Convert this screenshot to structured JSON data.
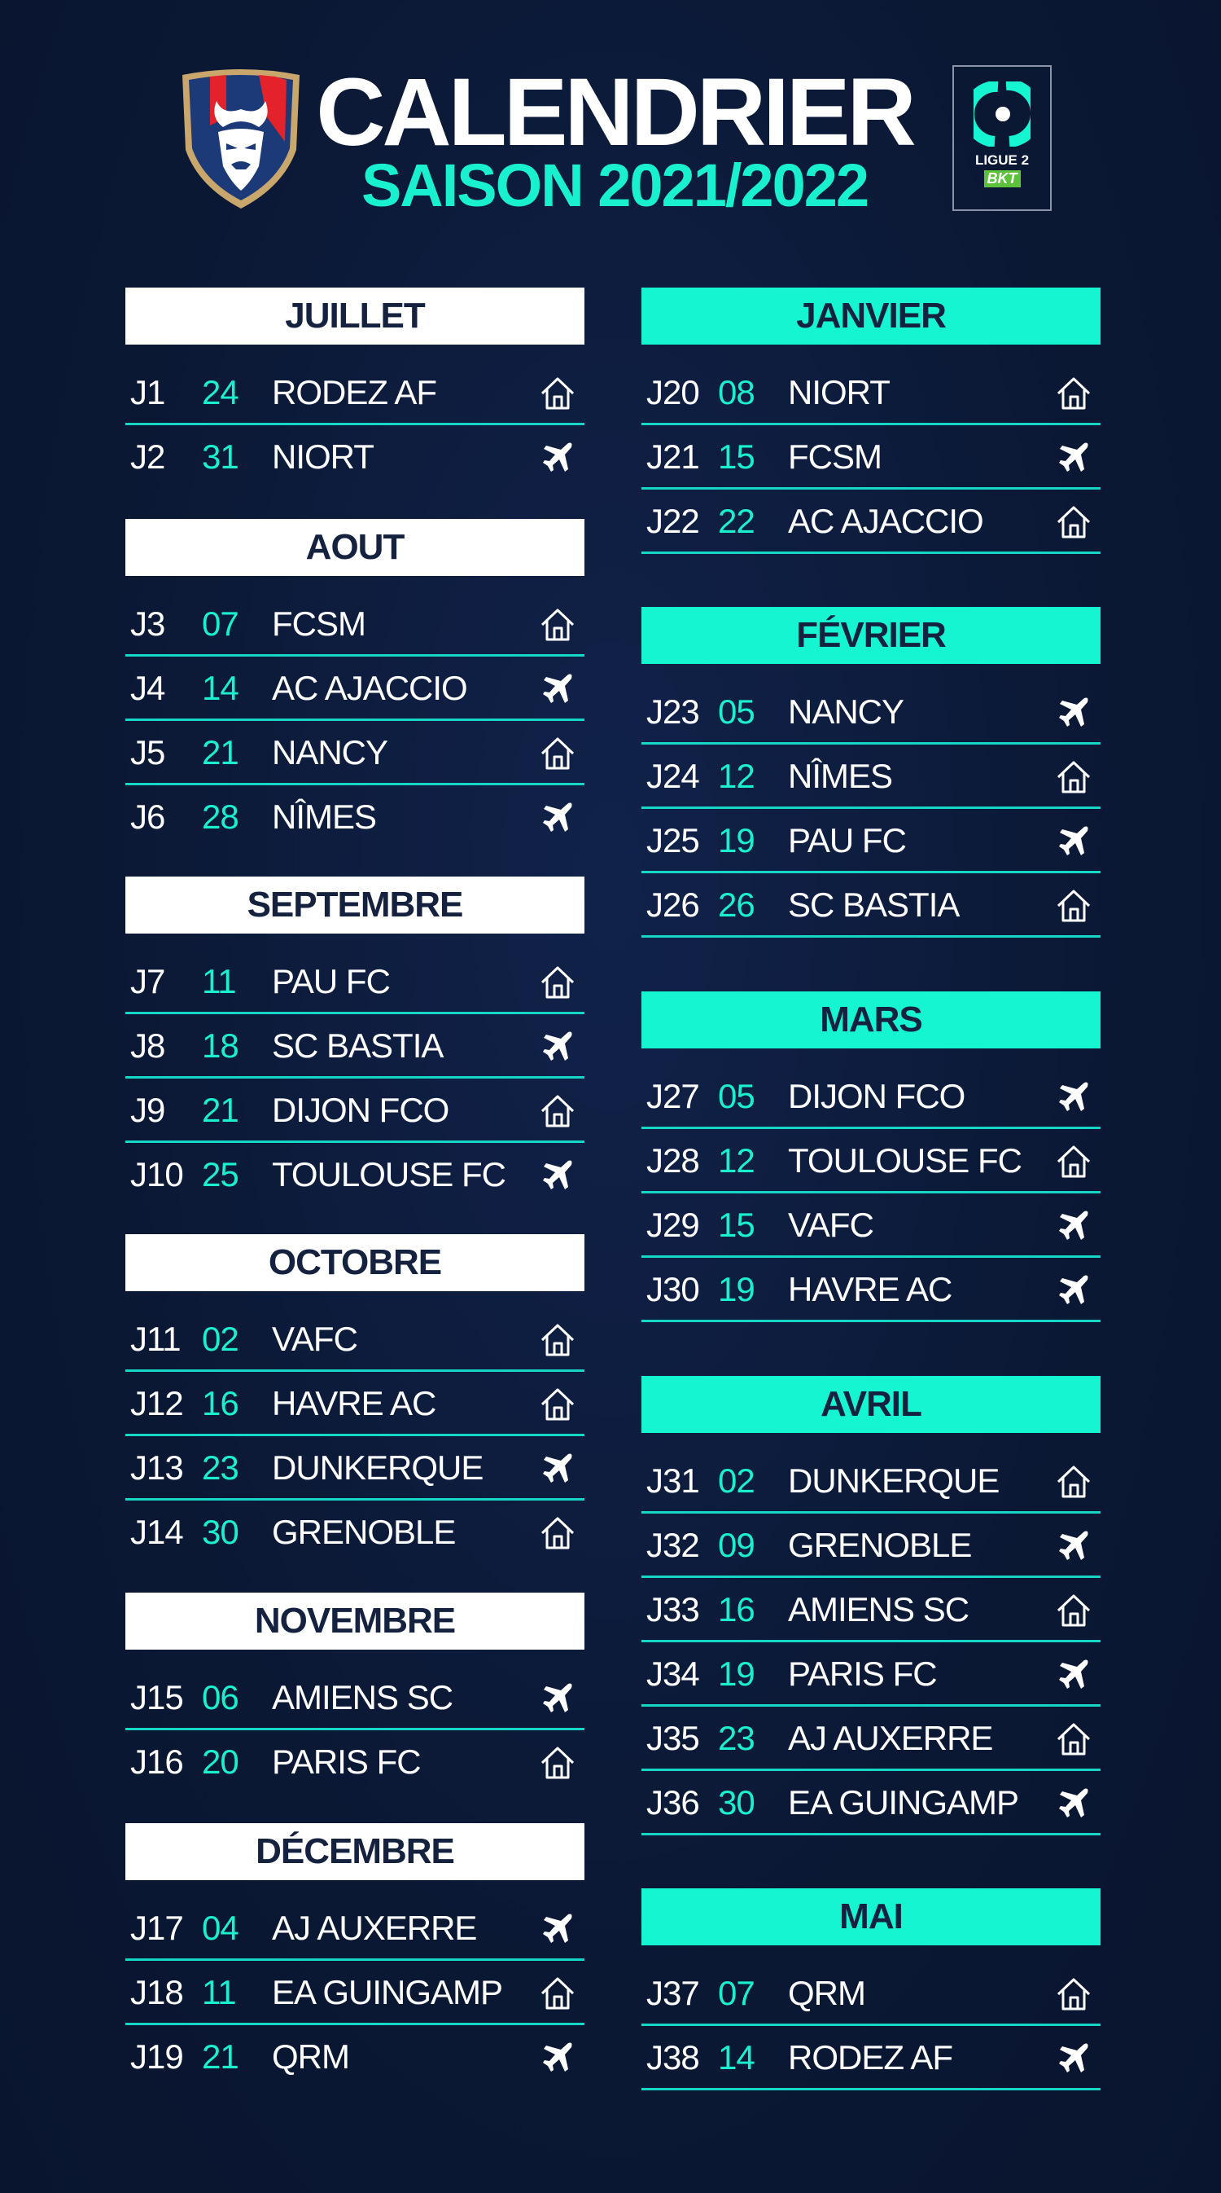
{
  "header": {
    "title": "CALENDRIER",
    "subtitle": "SAISON 2021/2022",
    "league_logo_text": "LIGUE 2",
    "league_sponsor": "BKT"
  },
  "colors": {
    "background": "#0c1a38",
    "accent": "#16f5d2",
    "white": "#ffffff",
    "text_dark": "#14213f"
  },
  "legend_icons": {
    "home": "home-icon",
    "away": "airplane-icon"
  },
  "left_months": [
    {
      "name": "JUILLET",
      "matches": [
        {
          "j": "J1",
          "date": "24",
          "team": "RODEZ AF",
          "venue": "home"
        },
        {
          "j": "J2",
          "date": "31",
          "team": "NIORT",
          "venue": "away"
        }
      ]
    },
    {
      "name": "AOUT",
      "matches": [
        {
          "j": "J3",
          "date": "07",
          "team": "FCSM",
          "venue": "home"
        },
        {
          "j": "J4",
          "date": "14",
          "team": "AC AJACCIO",
          "venue": "away"
        },
        {
          "j": "J5",
          "date": "21",
          "team": "NANCY",
          "venue": "home"
        },
        {
          "j": "J6",
          "date": "28",
          "team": "NÎMES",
          "venue": "away"
        }
      ]
    },
    {
      "name": "SEPTEMBRE",
      "matches": [
        {
          "j": "J7",
          "date": "11",
          "team": "PAU FC",
          "venue": "home"
        },
        {
          "j": "J8",
          "date": "18",
          "team": "SC BASTIA",
          "venue": "away"
        },
        {
          "j": "J9",
          "date": "21",
          "team": "DIJON FCO",
          "venue": "home"
        },
        {
          "j": "J10",
          "date": "25",
          "team": "TOULOUSE FC",
          "venue": "away"
        }
      ]
    },
    {
      "name": "OCTOBRE",
      "matches": [
        {
          "j": "J11",
          "date": "02",
          "team": "VAFC",
          "venue": "home"
        },
        {
          "j": "J12",
          "date": "16",
          "team": "HAVRE AC",
          "venue": "home"
        },
        {
          "j": "J13",
          "date": "23",
          "team": "DUNKERQUE",
          "venue": "away"
        },
        {
          "j": "J14",
          "date": "30",
          "team": "GRENOBLE",
          "venue": "home"
        }
      ]
    },
    {
      "name": "NOVEMBRE",
      "matches": [
        {
          "j": "J15",
          "date": "06",
          "team": "AMIENS SC",
          "venue": "away"
        },
        {
          "j": "J16",
          "date": "20",
          "team": "PARIS FC",
          "venue": "home"
        }
      ]
    },
    {
      "name": "DÉCEMBRE",
      "matches": [
        {
          "j": "J17",
          "date": "04",
          "team": "AJ AUXERRE",
          "venue": "away"
        },
        {
          "j": "J18",
          "date": "11",
          "team": "EA GUINGAMP",
          "venue": "home"
        },
        {
          "j": "J19",
          "date": "21",
          "team": "QRM",
          "venue": "away"
        }
      ]
    }
  ],
  "right_months": [
    {
      "name": "JANVIER",
      "matches": [
        {
          "j": "J20",
          "date": "08",
          "team": "NIORT",
          "venue": "home"
        },
        {
          "j": "J21",
          "date": "15",
          "team": "FCSM",
          "venue": "away"
        },
        {
          "j": "J22",
          "date": "22",
          "team": "AC AJACCIO",
          "venue": "home"
        }
      ]
    },
    {
      "name": "FÉVRIER",
      "matches": [
        {
          "j": "J23",
          "date": "05",
          "team": "NANCY",
          "venue": "away"
        },
        {
          "j": "J24",
          "date": "12",
          "team": "NÎMES",
          "venue": "home"
        },
        {
          "j": "J25",
          "date": "19",
          "team": "PAU FC",
          "venue": "away"
        },
        {
          "j": "J26",
          "date": "26",
          "team": "SC BASTIA",
          "venue": "home"
        }
      ]
    },
    {
      "name": "MARS",
      "matches": [
        {
          "j": "J27",
          "date": "05",
          "team": "DIJON FCO",
          "venue": "away"
        },
        {
          "j": "J28",
          "date": "12",
          "team": "TOULOUSE FC",
          "venue": "home"
        },
        {
          "j": "J29",
          "date": "15",
          "team": "VAFC",
          "venue": "away"
        },
        {
          "j": "J30",
          "date": "19",
          "team": "HAVRE AC",
          "venue": "away"
        }
      ]
    },
    {
      "name": "AVRIL",
      "matches": [
        {
          "j": "J31",
          "date": "02",
          "team": "DUNKERQUE",
          "venue": "home"
        },
        {
          "j": "J32",
          "date": "09",
          "team": "GRENOBLE",
          "venue": "away"
        },
        {
          "j": "J33",
          "date": "16",
          "team": "AMIENS SC",
          "venue": "home"
        },
        {
          "j": "J34",
          "date": "19",
          "team": "PARIS FC",
          "venue": "away"
        },
        {
          "j": "J35",
          "date": "23",
          "team": "AJ AUXERRE",
          "venue": "home"
        },
        {
          "j": "J36",
          "date": "30",
          "team": "EA GUINGAMP",
          "venue": "away"
        }
      ]
    },
    {
      "name": "MAI",
      "matches": [
        {
          "j": "J37",
          "date": "07",
          "team": "QRM",
          "venue": "home"
        },
        {
          "j": "J38",
          "date": "14",
          "team": "RODEZ AF",
          "venue": "away"
        }
      ]
    }
  ]
}
